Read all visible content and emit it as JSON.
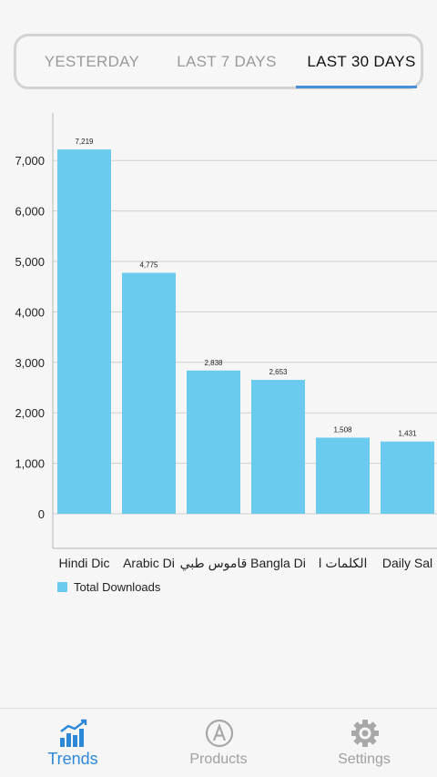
{
  "tabs": [
    {
      "label": "YESTERDAY",
      "active": false
    },
    {
      "label": "LAST 7 DAYS",
      "active": false
    },
    {
      "label": "LAST 30 DAYS",
      "active": true
    }
  ],
  "chart_data": {
    "type": "bar",
    "categories": [
      "Hindi Dic",
      "Arabic Di",
      "قاموس طبي",
      "Bangla Di",
      "الكلمات ا",
      "Daily Sal"
    ],
    "series": [
      {
        "name": "Total Downloads",
        "values": [
          7219,
          4775,
          2838,
          2653,
          1508,
          1431
        ],
        "color": "#6bcbef"
      }
    ],
    "data_labels": [
      "7,219",
      "4,775",
      "2,838",
      "2,653",
      "1,508",
      "1,431"
    ],
    "yticks": [
      "0",
      "1,000",
      "2,000",
      "3,000",
      "4,000",
      "5,000",
      "6,000",
      "7,000"
    ],
    "ylim": [
      0,
      7000
    ],
    "grid": true,
    "legend": "bottom-left"
  },
  "bottom_nav": [
    {
      "label": "Trends",
      "icon": "trends-icon",
      "active": true
    },
    {
      "label": "Products",
      "icon": "app-store-icon",
      "active": false
    },
    {
      "label": "Settings",
      "icon": "gear-icon",
      "active": false
    }
  ],
  "colors": {
    "accent": "#2d88d8",
    "bar": "#6bcbef",
    "inactive": "#a0a0a0"
  }
}
